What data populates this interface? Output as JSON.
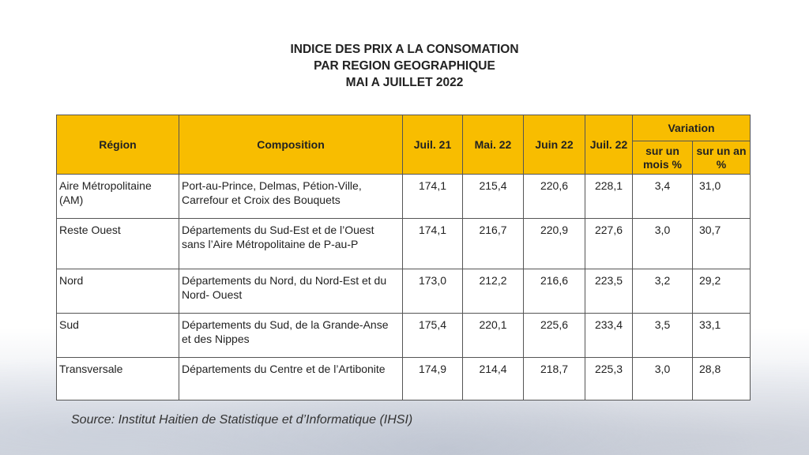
{
  "title": {
    "line1": "INDICE DES PRIX A LA CONSOMATION",
    "line2": "PAR REGION GEOGRAPHIQUE",
    "line3": "MAI A JUILLET 2022"
  },
  "table": {
    "headers": {
      "region": "Région",
      "composition": "Composition",
      "jul21": "Juil. 21",
      "mai22": "Mai. 22",
      "jun22": "Juin 22",
      "jul22": "Juil. 22",
      "variation": "Variation",
      "var_month": "sur un mois %",
      "var_year": "sur un an %"
    },
    "rows": [
      {
        "region": "Aire  Métropolitaine (AM)",
        "composition": "Port-au-Prince, Delmas, Pétion-Ville, Carrefour  et Croix des Bouquets",
        "jul21": "174,1",
        "mai22": "215,4",
        "jun22": "220,6",
        "jul22": "228,1",
        "var_month": "3,4",
        "var_year": "31,0"
      },
      {
        "region": "Reste Ouest",
        "composition": "Départements du Sud-Est et de l’Ouest sans  l’Aire Métropolitaine de P-au-P",
        "jul21": "174,1",
        "mai22": "216,7",
        "jun22": "220,9",
        "jul22": "227,6",
        "var_month": "3,0",
        "var_year": "30,7"
      },
      {
        "region": "Nord",
        "composition": "Départements du Nord, du Nord-Est et du Nord-  Ouest",
        "jul21": "173,0",
        "mai22": "212,2",
        "jun22": "216,6",
        "jul22": "223,5",
        "var_month": "3,2",
        "var_year": "29,2"
      },
      {
        "region": "Sud",
        "composition": "Départements du Sud, de la Grande-Anse et  des Nippes",
        "jul21": "175,4",
        "mai22": "220,1",
        "jun22": "225,6",
        "jul22": "233,4",
        "var_month": "3,5",
        "var_year": "33,1"
      },
      {
        "region": "Transversale",
        "composition": "Départements du Centre et de l’Artibonite",
        "jul21": "174,9",
        "mai22": "214,4",
        "jun22": "218,7",
        "jul22": "225,3",
        "var_month": "3,0",
        "var_year": "28,8"
      }
    ]
  },
  "source": "Source: Institut Haitien de Statistique et d’Informatique (IHSI)",
  "colors": {
    "header_bg": "#f8bd00",
    "border": "#555555"
  }
}
